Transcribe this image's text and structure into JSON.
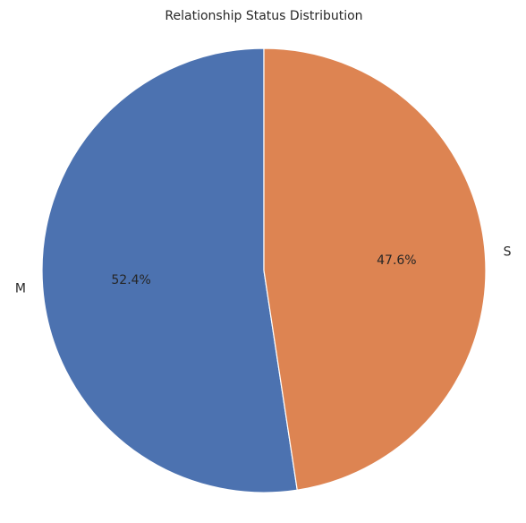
{
  "chart_data": {
    "type": "pie",
    "title": "Relationship Status Distribution",
    "slices": [
      {
        "label": "M",
        "percent": 52.4,
        "percent_label": "52.4%",
        "color": "#4c72b0"
      },
      {
        "label": "S",
        "percent": 47.6,
        "percent_label": "47.6%",
        "color": "#dd8452"
      }
    ],
    "start_angle_deg": 90,
    "direction": "counterclockwise"
  }
}
